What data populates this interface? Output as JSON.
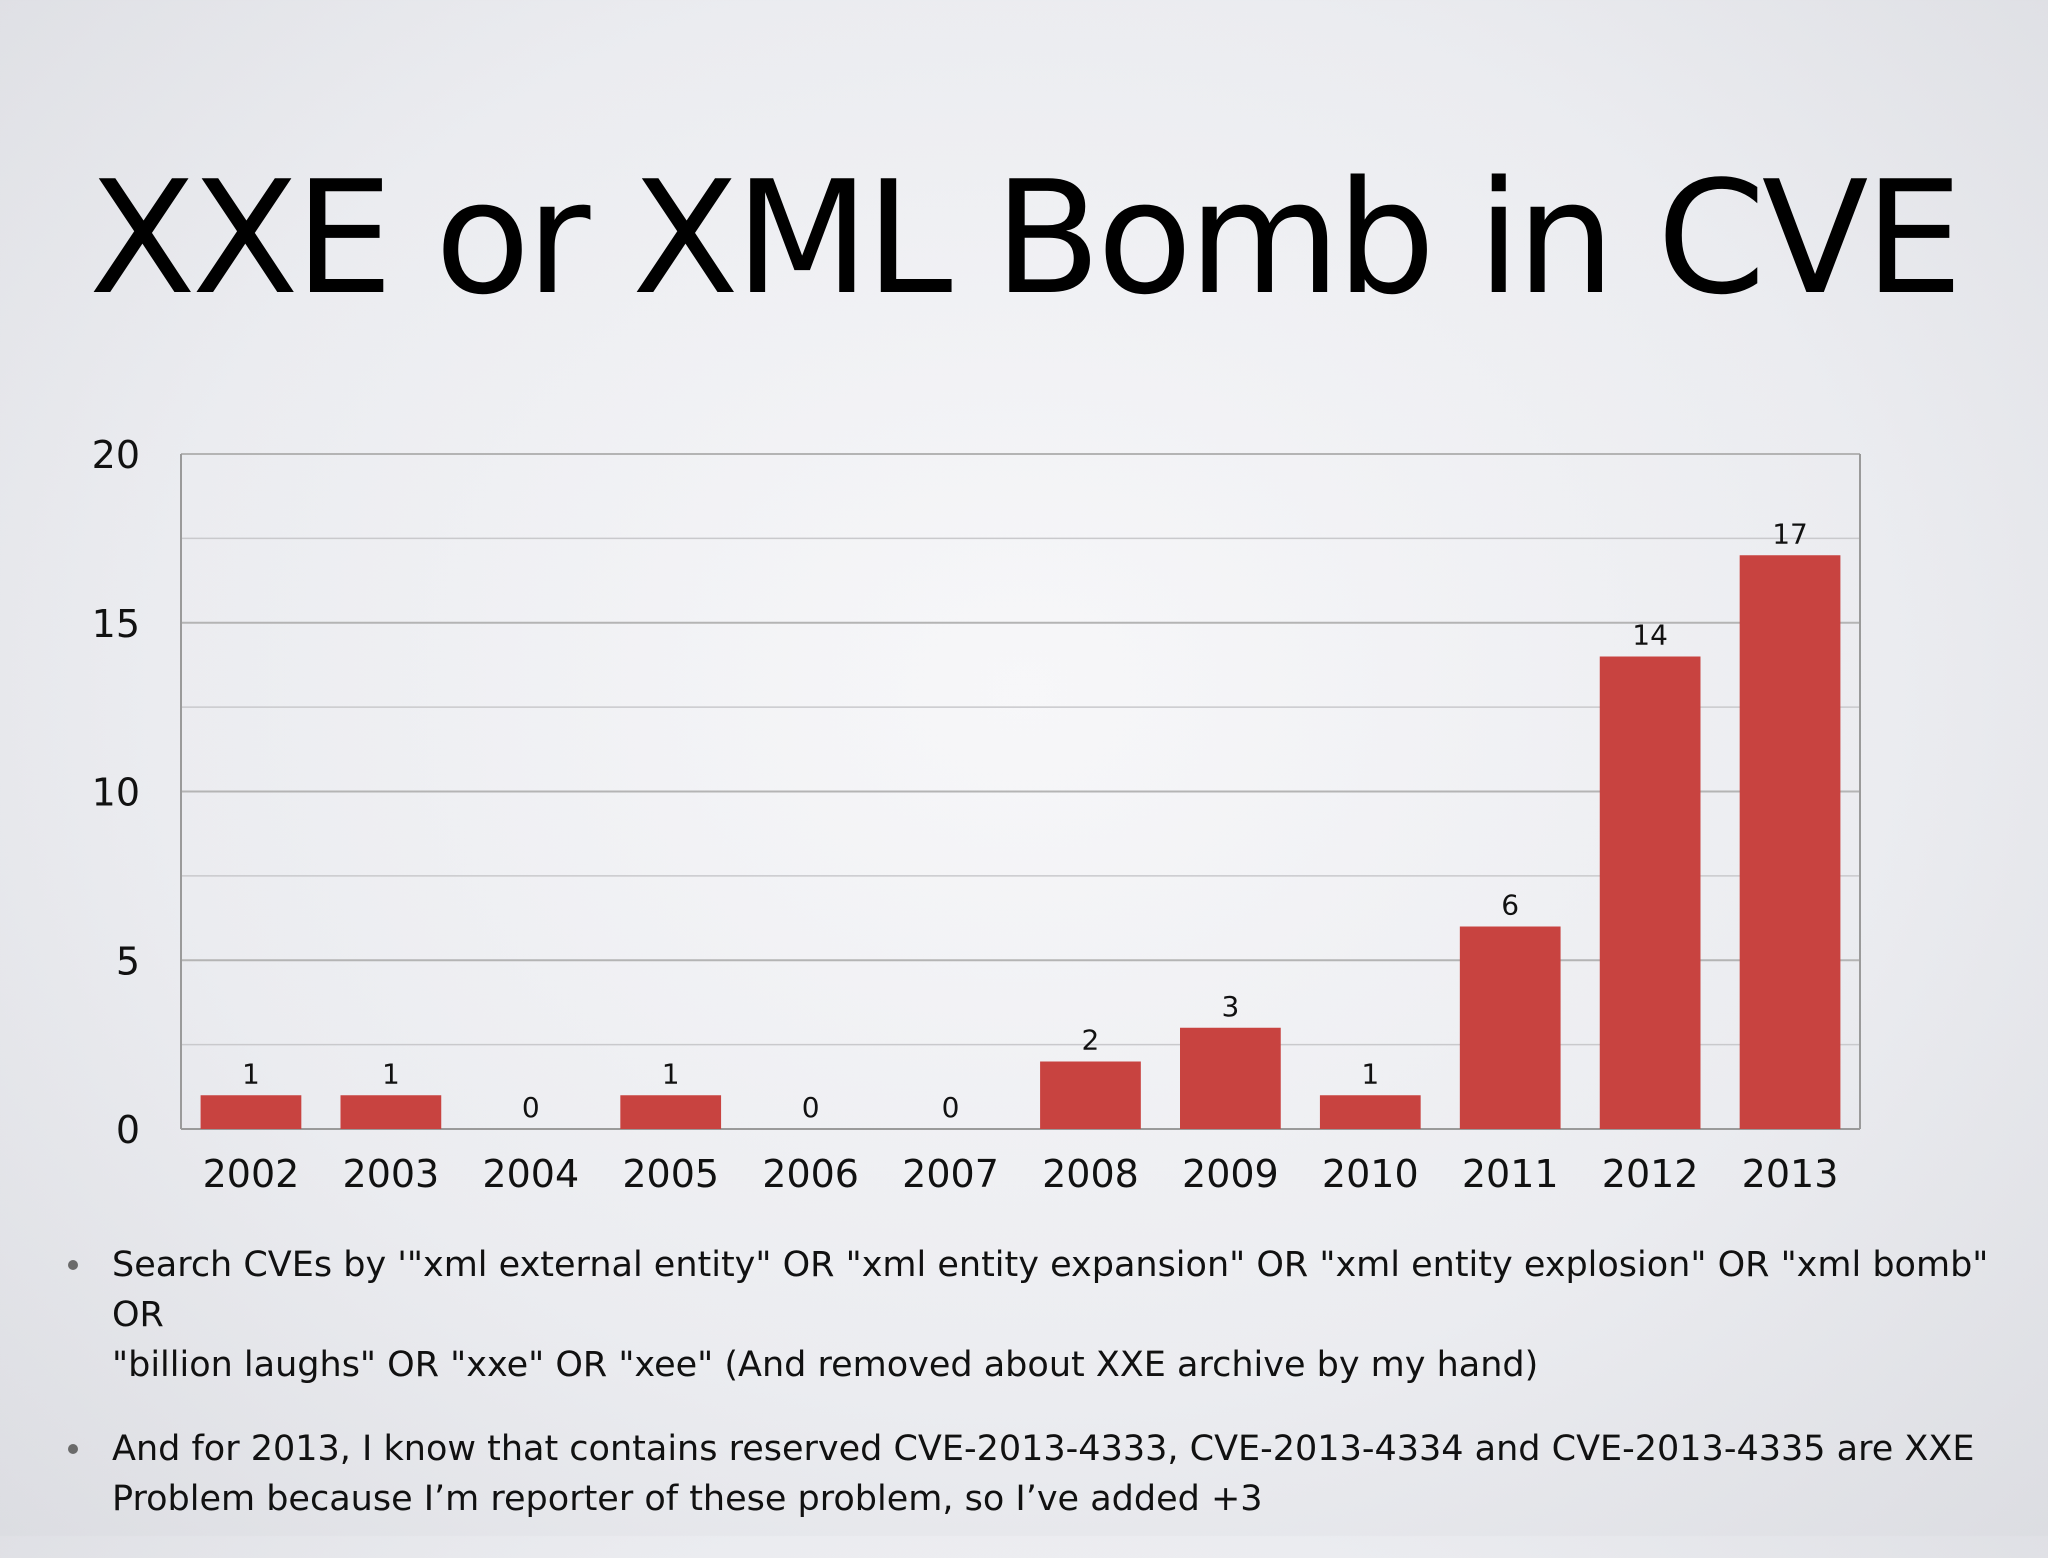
{
  "slide": {
    "title": "XXE or XML Bomb in CVE"
  },
  "colors": {
    "bar": "#c84340",
    "grid": "#b4b4b4",
    "axis": "#9a9a9a"
  },
  "chart_data": {
    "type": "bar",
    "title": "",
    "xlabel": "",
    "ylabel": "",
    "categories": [
      "2002",
      "2003",
      "2004",
      "2005",
      "2006",
      "2007",
      "2008",
      "2009",
      "2010",
      "2011",
      "2012",
      "2013"
    ],
    "values": [
      1,
      1,
      0,
      1,
      0,
      0,
      2,
      3,
      1,
      6,
      14,
      17
    ],
    "data_labels": [
      "1",
      "1",
      "0",
      "1",
      "0",
      "0",
      "2",
      "3",
      "1",
      "6",
      "14",
      "17"
    ],
    "ylim": [
      0,
      20
    ],
    "yticks": [
      0,
      5,
      10,
      15,
      20
    ],
    "ytick_labels": [
      "0",
      "5",
      "10",
      "15",
      "20"
    ],
    "minor_gridlines_every": 2.5,
    "grid": true,
    "legend": "none"
  },
  "bullets": [
    {
      "lines": [
        "Search CVEs by '\"xml external entity\" OR \"xml entity expansion\" OR \"xml entity explosion\" OR \"xml bomb\" OR",
        "\"billion laughs\" OR \"xxe\" OR \"xee\" (And removed about XXE archive by my hand)"
      ]
    },
    {
      "lines": [
        "And for 2013, I know that contains reserved CVE-2013-4333, CVE-2013-4334 and CVE-2013-4335 are XXE",
        "Problem because I’m reporter of these problem, so I’ve added +3"
      ]
    }
  ]
}
